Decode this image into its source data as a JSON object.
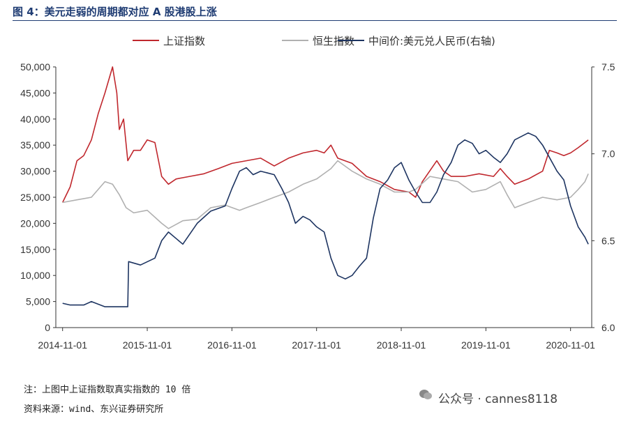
{
  "header": {
    "title": "图 4：美元走弱的周期都对应 A 股港股上涨"
  },
  "chart_data": {
    "type": "line",
    "legend_position": "top",
    "grid": false,
    "x_ticks": [
      "2014-11-01",
      "2015-11-01",
      "2016-11-01",
      "2017-11-01",
      "2018-11-01",
      "2019-11-01",
      "2020-11-01"
    ],
    "x_range": [
      2014.75,
      2021.08
    ],
    "y_left": {
      "ylim": [
        0,
        50000
      ],
      "ticks": [
        "0",
        "5,000",
        "10,000",
        "15,000",
        "20,000",
        "25,000",
        "30,000",
        "35,000",
        "40,000",
        "45,000",
        "50,000"
      ]
    },
    "y_right": {
      "ylim": [
        6.0,
        7.5
      ],
      "ticks": [
        "6.0",
        "6.5",
        "7.0",
        "7.5"
      ]
    },
    "series": [
      {
        "name": "上证指数",
        "color": "#c0272d",
        "axis": "left",
        "points": [
          [
            2014.83,
            24000
          ],
          [
            2014.92,
            27000
          ],
          [
            2015.0,
            32000
          ],
          [
            2015.08,
            33000
          ],
          [
            2015.17,
            36000
          ],
          [
            2015.25,
            41000
          ],
          [
            2015.33,
            45000
          ],
          [
            2015.42,
            50000
          ],
          [
            2015.47,
            45000
          ],
          [
            2015.5,
            38000
          ],
          [
            2015.55,
            40000
          ],
          [
            2015.6,
            32000
          ],
          [
            2015.67,
            34000
          ],
          [
            2015.75,
            34000
          ],
          [
            2015.83,
            36000
          ],
          [
            2015.92,
            35500
          ],
          [
            2016.0,
            29000
          ],
          [
            2016.08,
            27500
          ],
          [
            2016.17,
            28500
          ],
          [
            2016.33,
            29000
          ],
          [
            2016.5,
            29500
          ],
          [
            2016.67,
            30500
          ],
          [
            2016.83,
            31500
          ],
          [
            2017.0,
            32000
          ],
          [
            2017.17,
            32500
          ],
          [
            2017.33,
            31000
          ],
          [
            2017.5,
            32500
          ],
          [
            2017.67,
            33500
          ],
          [
            2017.83,
            34000
          ],
          [
            2017.92,
            33500
          ],
          [
            2018.0,
            35000
          ],
          [
            2018.08,
            32500
          ],
          [
            2018.25,
            31500
          ],
          [
            2018.42,
            29000
          ],
          [
            2018.58,
            28000
          ],
          [
            2018.75,
            26500
          ],
          [
            2018.92,
            26000
          ],
          [
            2019.0,
            25000
          ],
          [
            2019.08,
            28000
          ],
          [
            2019.25,
            32000
          ],
          [
            2019.33,
            30000
          ],
          [
            2019.42,
            29000
          ],
          [
            2019.58,
            29000
          ],
          [
            2019.75,
            29500
          ],
          [
            2019.92,
            29000
          ],
          [
            2020.0,
            30500
          ],
          [
            2020.08,
            29000
          ],
          [
            2020.17,
            27500
          ],
          [
            2020.33,
            28500
          ],
          [
            2020.5,
            30000
          ],
          [
            2020.58,
            34000
          ],
          [
            2020.67,
            33500
          ],
          [
            2020.75,
            33000
          ],
          [
            2020.83,
            33500
          ],
          [
            2020.92,
            34500
          ],
          [
            2021.0,
            35500
          ],
          [
            2021.04,
            36000
          ]
        ]
      },
      {
        "name": "恒生指数",
        "color": "#b0b0b0",
        "axis": "left",
        "points": [
          [
            2014.83,
            24000
          ],
          [
            2015.0,
            24500
          ],
          [
            2015.17,
            25000
          ],
          [
            2015.33,
            28000
          ],
          [
            2015.42,
            27500
          ],
          [
            2015.5,
            25500
          ],
          [
            2015.58,
            23000
          ],
          [
            2015.67,
            22000
          ],
          [
            2015.83,
            22500
          ],
          [
            2016.0,
            20000
          ],
          [
            2016.08,
            19000
          ],
          [
            2016.25,
            20500
          ],
          [
            2016.42,
            20800
          ],
          [
            2016.58,
            23000
          ],
          [
            2016.75,
            23500
          ],
          [
            2016.92,
            22500
          ],
          [
            2017.0,
            23000
          ],
          [
            2017.17,
            24000
          ],
          [
            2017.33,
            25000
          ],
          [
            2017.5,
            26000
          ],
          [
            2017.67,
            27500
          ],
          [
            2017.83,
            28500
          ],
          [
            2018.0,
            30500
          ],
          [
            2018.08,
            32000
          ],
          [
            2018.25,
            30000
          ],
          [
            2018.42,
            28500
          ],
          [
            2018.58,
            27500
          ],
          [
            2018.75,
            26000
          ],
          [
            2018.92,
            26000
          ],
          [
            2019.0,
            26500
          ],
          [
            2019.17,
            29000
          ],
          [
            2019.33,
            28500
          ],
          [
            2019.5,
            28000
          ],
          [
            2019.67,
            26000
          ],
          [
            2019.83,
            26500
          ],
          [
            2020.0,
            28000
          ],
          [
            2020.08,
            25500
          ],
          [
            2020.17,
            23000
          ],
          [
            2020.33,
            24000
          ],
          [
            2020.5,
            25000
          ],
          [
            2020.67,
            24500
          ],
          [
            2020.83,
            25000
          ],
          [
            2020.92,
            26500
          ],
          [
            2021.0,
            28000
          ],
          [
            2021.04,
            29500
          ]
        ]
      },
      {
        "name": "中间价:美元兑人民币(右轴)",
        "color": "#1d3461",
        "axis": "right",
        "points": [
          [
            2014.83,
            6.14
          ],
          [
            2014.92,
            6.13
          ],
          [
            2015.08,
            6.13
          ],
          [
            2015.17,
            6.15
          ],
          [
            2015.33,
            6.12
          ],
          [
            2015.5,
            6.12
          ],
          [
            2015.6,
            6.12
          ],
          [
            2015.61,
            6.38
          ],
          [
            2015.75,
            6.36
          ],
          [
            2015.92,
            6.4
          ],
          [
            2016.0,
            6.5
          ],
          [
            2016.08,
            6.55
          ],
          [
            2016.25,
            6.48
          ],
          [
            2016.42,
            6.6
          ],
          [
            2016.58,
            6.67
          ],
          [
            2016.75,
            6.7
          ],
          [
            2016.83,
            6.8
          ],
          [
            2016.92,
            6.9
          ],
          [
            2017.0,
            6.92
          ],
          [
            2017.08,
            6.88
          ],
          [
            2017.17,
            6.9
          ],
          [
            2017.33,
            6.88
          ],
          [
            2017.42,
            6.8
          ],
          [
            2017.5,
            6.72
          ],
          [
            2017.58,
            6.6
          ],
          [
            2017.67,
            6.64
          ],
          [
            2017.75,
            6.62
          ],
          [
            2017.83,
            6.58
          ],
          [
            2017.92,
            6.55
          ],
          [
            2018.0,
            6.4
          ],
          [
            2018.08,
            6.3
          ],
          [
            2018.17,
            6.28
          ],
          [
            2018.25,
            6.3
          ],
          [
            2018.33,
            6.35
          ],
          [
            2018.42,
            6.4
          ],
          [
            2018.5,
            6.63
          ],
          [
            2018.58,
            6.8
          ],
          [
            2018.67,
            6.85
          ],
          [
            2018.75,
            6.92
          ],
          [
            2018.83,
            6.95
          ],
          [
            2018.92,
            6.85
          ],
          [
            2019.0,
            6.78
          ],
          [
            2019.08,
            6.72
          ],
          [
            2019.17,
            6.72
          ],
          [
            2019.25,
            6.78
          ],
          [
            2019.33,
            6.88
          ],
          [
            2019.42,
            6.95
          ],
          [
            2019.5,
            7.05
          ],
          [
            2019.58,
            7.08
          ],
          [
            2019.67,
            7.06
          ],
          [
            2019.75,
            7.0
          ],
          [
            2019.83,
            7.02
          ],
          [
            2019.92,
            6.98
          ],
          [
            2020.0,
            6.95
          ],
          [
            2020.08,
            7.0
          ],
          [
            2020.17,
            7.08
          ],
          [
            2020.25,
            7.1
          ],
          [
            2020.33,
            7.12
          ],
          [
            2020.42,
            7.1
          ],
          [
            2020.5,
            7.05
          ],
          [
            2020.58,
            6.98
          ],
          [
            2020.67,
            6.9
          ],
          [
            2020.75,
            6.85
          ],
          [
            2020.83,
            6.7
          ],
          [
            2020.92,
            6.58
          ],
          [
            2021.0,
            6.52
          ],
          [
            2021.04,
            6.48
          ]
        ]
      }
    ]
  },
  "footer": {
    "note": "注：上图中上证指数取真实指数的 10 倍",
    "source": "资料来源：wind、东兴证券研究所"
  },
  "watermark": {
    "text": "公众号 · cannes8118"
  }
}
